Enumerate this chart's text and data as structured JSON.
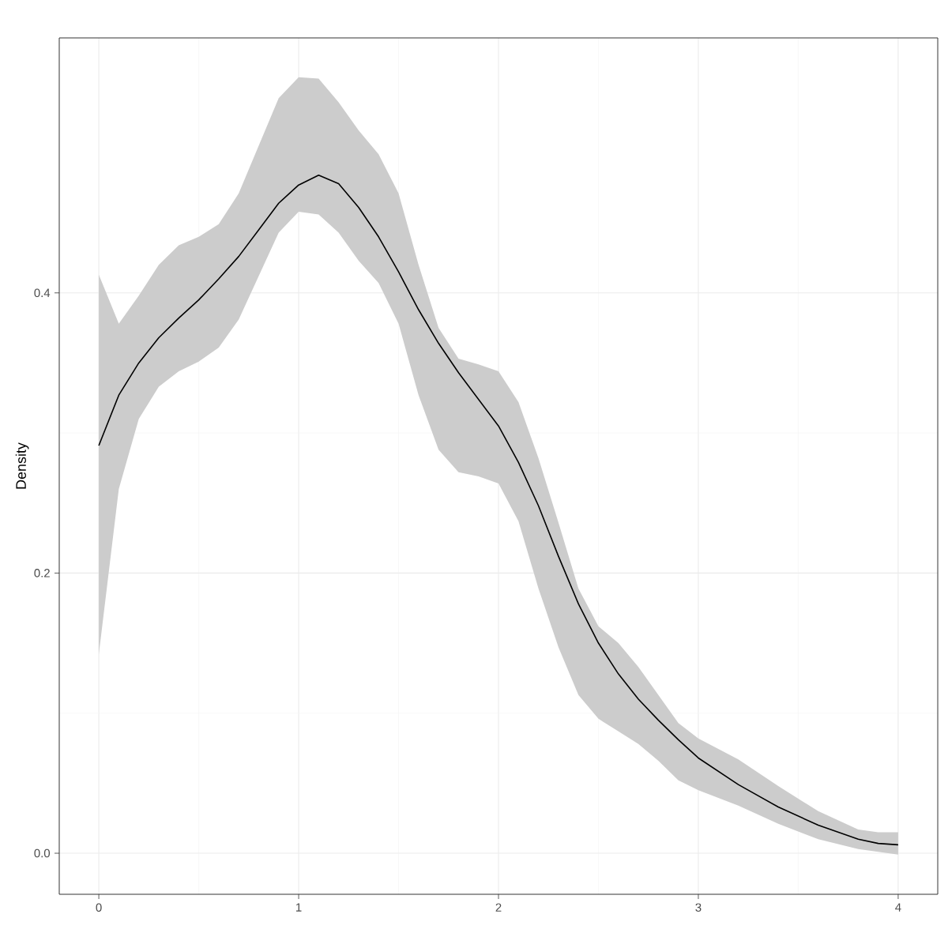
{
  "chart_data": {
    "type": "line",
    "ylabel": "Density",
    "xlim": [
      -0.198,
      4.198
    ],
    "ylim": [
      -0.0293,
      0.582
    ],
    "xticks": [
      0,
      1,
      2,
      3,
      4
    ],
    "yticks": [
      {
        "value": 0,
        "label": "0.0"
      },
      {
        "value": 0.2,
        "label": "0.2"
      },
      {
        "value": 0.4,
        "label": "0.4"
      }
    ],
    "grid": true,
    "marker": "none",
    "line_style": "solid",
    "series": [
      {
        "color": "#000000",
        "x": [
          0,
          0.1,
          0.2,
          0.3,
          0.4,
          0.5,
          0.6,
          0.7,
          0.8,
          0.9,
          1.0,
          1.1,
          1.2,
          1.3,
          1.4,
          1.5,
          1.6,
          1.7,
          1.8,
          1.9,
          2.0,
          2.1,
          2.2,
          2.3,
          2.4,
          2.5,
          2.6,
          2.7,
          2.8,
          2.9,
          3.0,
          3.2,
          3.4,
          3.6,
          3.8,
          3.9,
          4.0
        ],
        "values": [
          0.291,
          0.327,
          0.35,
          0.368,
          0.382,
          0.395,
          0.41,
          0.426,
          0.445,
          0.464,
          0.477,
          0.484,
          0.478,
          0.461,
          0.44,
          0.415,
          0.388,
          0.364,
          0.343,
          0.324,
          0.305,
          0.279,
          0.248,
          0.212,
          0.178,
          0.15,
          0.128,
          0.11,
          0.095,
          0.081,
          0.068,
          0.049,
          0.033,
          0.02,
          0.01,
          0.007,
          0.006
        ],
        "lower": [
          0.142,
          0.26,
          0.31,
          0.333,
          0.344,
          0.351,
          0.361,
          0.381,
          0.412,
          0.443,
          0.458,
          0.456,
          0.443,
          0.423,
          0.407,
          0.378,
          0.327,
          0.288,
          0.272,
          0.269,
          0.264,
          0.237,
          0.189,
          0.147,
          0.113,
          0.096,
          0.087,
          0.078,
          0.066,
          0.052,
          0.045,
          0.034,
          0.021,
          0.01,
          0.003,
          0.001,
          -0.001
        ],
        "upper": [
          0.413,
          0.378,
          0.398,
          0.42,
          0.434,
          0.44,
          0.449,
          0.471,
          0.505,
          0.539,
          0.554,
          0.553,
          0.536,
          0.516,
          0.499,
          0.471,
          0.42,
          0.375,
          0.353,
          0.349,
          0.344,
          0.322,
          0.282,
          0.236,
          0.189,
          0.162,
          0.15,
          0.133,
          0.113,
          0.093,
          0.082,
          0.067,
          0.048,
          0.03,
          0.017,
          0.015,
          0.015
        ]
      }
    ]
  }
}
